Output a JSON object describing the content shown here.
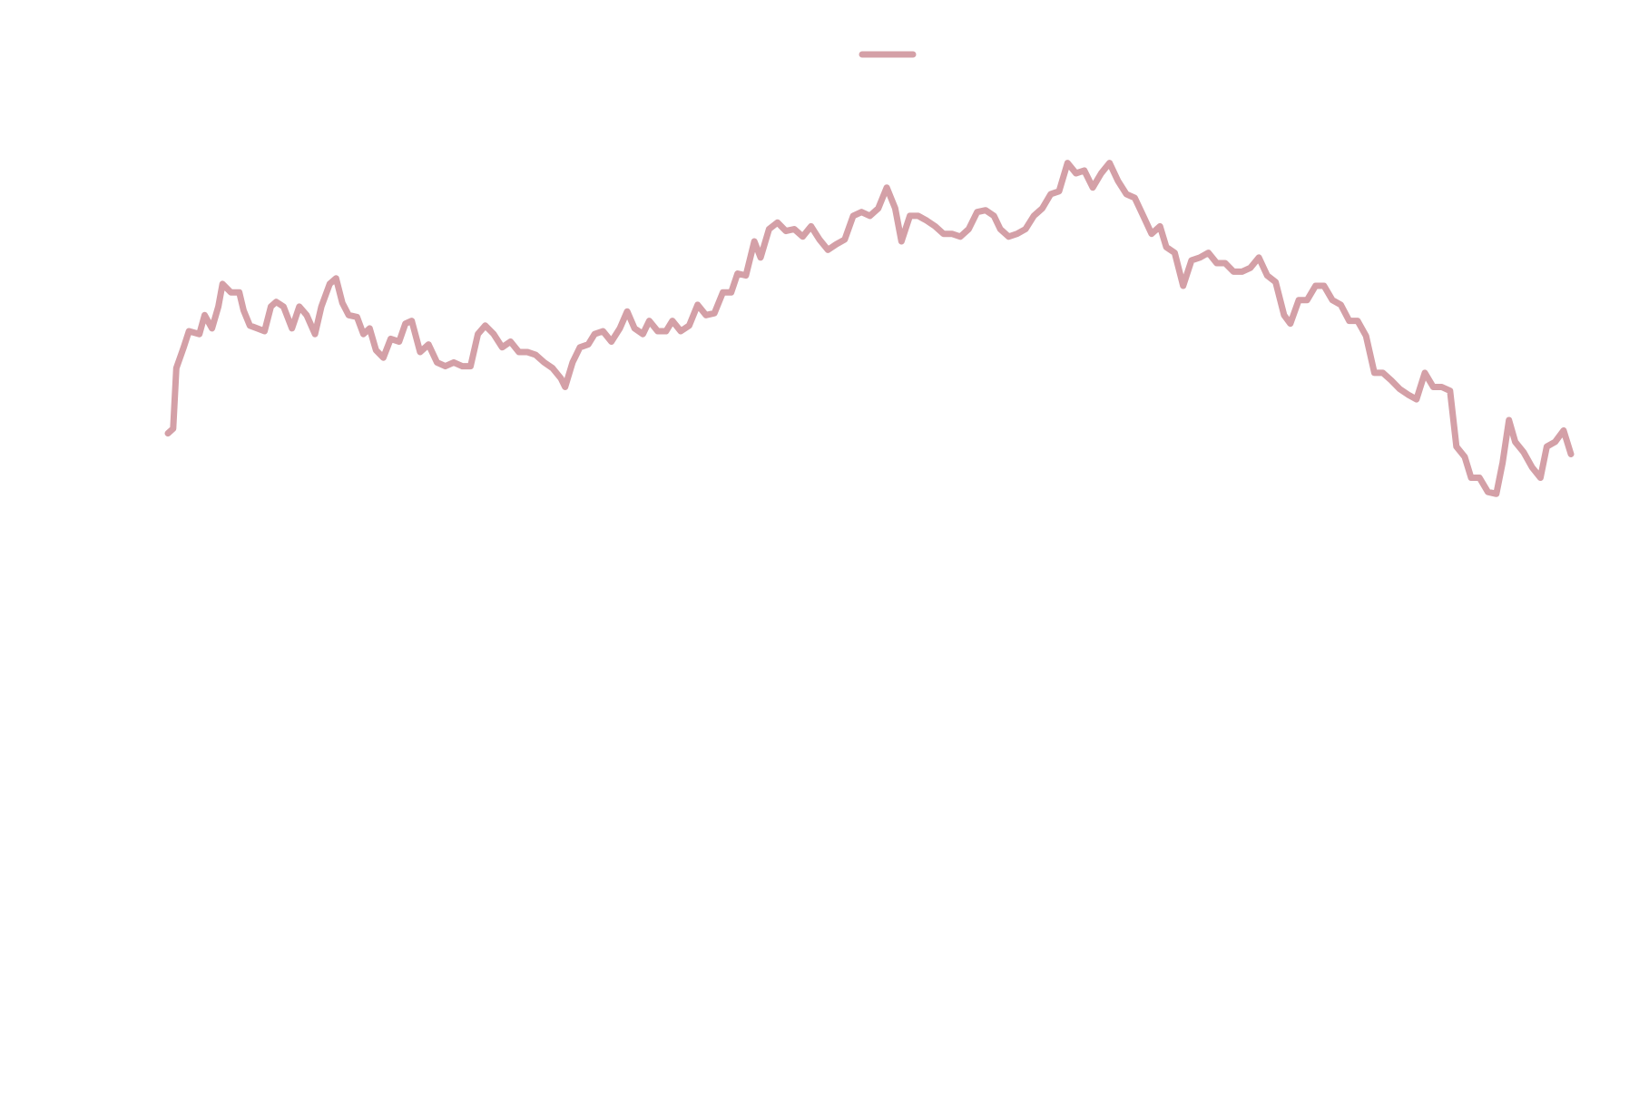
{
  "chart_data": {
    "type": "line",
    "legend": "upper center",
    "xlim": [
      0,
      1335
    ],
    "ylim": [
      0,
      100
    ],
    "series": [
      {
        "color": "#d4a0a7",
        "x": [
          0,
          5,
          8,
          15,
          20,
          30,
          35,
          42,
          48,
          52,
          60,
          68,
          72,
          78,
          85,
          92,
          98,
          103,
          110,
          118,
          125,
          132,
          140,
          146,
          154,
          160,
          166,
          172,
          180,
          186,
          192,
          198,
          205,
          212,
          220,
          226,
          232,
          240,
          248,
          256,
          264,
          272,
          280,
          288,
          295,
          302,
          310,
          318,
          326,
          334,
          342,
          350,
          358,
          366,
          374,
          378,
          385,
          392,
          400,
          406,
          414,
          422,
          430,
          437,
          444,
          452,
          458,
          466,
          474,
          480,
          488,
          496,
          504,
          512,
          520,
          528,
          536,
          542,
          550,
          558,
          564,
          572,
          580,
          588,
          596,
          604,
          612,
          620,
          628,
          636,
          644,
          652,
          660,
          668,
          676,
          684,
          692,
          698,
          706,
          714,
          722,
          730,
          738,
          746,
          754,
          762,
          770,
          778,
          786,
          792,
          800,
          808,
          816,
          824,
          832,
          840,
          848,
          856,
          864,
          872,
          880,
          888,
          896,
          904,
          912,
          920,
          928,
          936,
          944,
          950,
          958,
          966,
          974,
          982,
          990,
          998,
          1006,
          1014,
          1022,
          1030,
          1038,
          1046,
          1054,
          1062,
          1068,
          1076,
          1084,
          1092,
          1100,
          1108,
          1116,
          1124,
          1132,
          1140,
          1148,
          1156,
          1164,
          1172,
          1180,
          1188,
          1196,
          1204,
          1212,
          1220,
          1226,
          1234,
          1240,
          1248,
          1256,
          1264,
          1270,
          1276,
          1282,
          1290,
          1298,
          1306,
          1312,
          1320,
          1328,
          1335
        ],
        "values": [
          65.3,
          65.8,
          72.2,
          74.4,
          76.1,
          75.8,
          77.8,
          76.4,
          78.7,
          81.1,
          80.2,
          80.2,
          78.3,
          76.7,
          76.4,
          76.1,
          78.7,
          79.2,
          78.7,
          76.4,
          78.7,
          77.8,
          75.8,
          78.7,
          81.1,
          81.7,
          79.1,
          77.8,
          77.6,
          75.8,
          76.4,
          74.1,
          73.3,
          75.3,
          75.0,
          76.9,
          77.2,
          73.9,
          74.7,
          72.8,
          72.4,
          72.8,
          72.4,
          72.4,
          75.8,
          76.7,
          75.8,
          74.4,
          75.0,
          73.9,
          73.9,
          73.6,
          72.8,
          72.2,
          71.1,
          70.2,
          72.8,
          74.4,
          74.7,
          75.8,
          76.1,
          75.0,
          76.4,
          78.2,
          76.4,
          75.8,
          77.2,
          76.1,
          76.1,
          77.2,
          76.1,
          76.7,
          78.9,
          77.8,
          78.0,
          80.2,
          80.2,
          82.2,
          82.0,
          85.6,
          83.9,
          86.9,
          87.6,
          86.7,
          86.9,
          86.1,
          87.2,
          85.8,
          84.7,
          85.3,
          85.8,
          88.3,
          88.7,
          88.3,
          89.1,
          91.3,
          89.1,
          85.6,
          88.3,
          88.3,
          87.8,
          87.2,
          86.4,
          86.4,
          86.1,
          86.9,
          88.7,
          88.9,
          88.3,
          86.9,
          86.1,
          86.4,
          86.9,
          88.3,
          89.1,
          90.6,
          90.9,
          93.9,
          92.8,
          93.1,
          91.3,
          92.8,
          93.9,
          92.0,
          90.6,
          90.2,
          88.3,
          86.4,
          87.2,
          85.0,
          84.4,
          80.9,
          83.6,
          83.9,
          84.4,
          83.3,
          83.3,
          82.4,
          82.4,
          82.8,
          83.9,
          82.0,
          81.3,
          77.8,
          76.9,
          79.4,
          79.4,
          80.9,
          80.9,
          79.4,
          78.9,
          77.2,
          77.2,
          75.6,
          71.7,
          71.7,
          70.9,
          70.0,
          69.4,
          68.9,
          71.7,
          70.2,
          70.2,
          69.8,
          63.9,
          62.8,
          60.6,
          60.6,
          59.1,
          58.9,
          62.2,
          66.7,
          64.4,
          63.3,
          61.7,
          60.6,
          63.9,
          64.4,
          65.6,
          63.1
        ]
      }
    ]
  }
}
